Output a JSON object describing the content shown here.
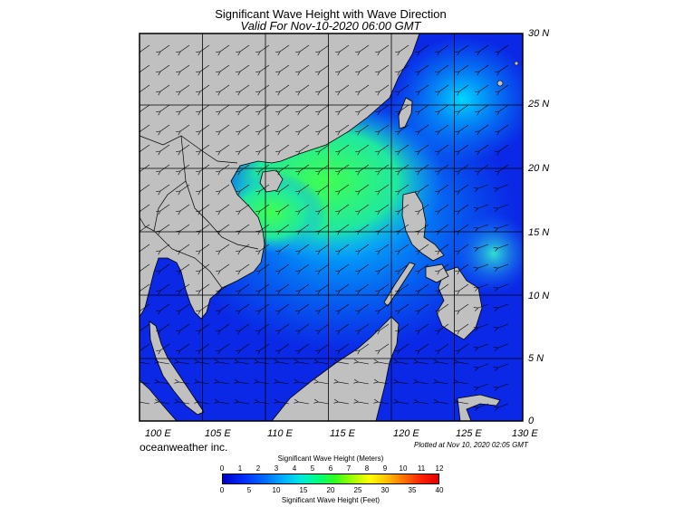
{
  "title": "Significant Wave Height with Wave Direction",
  "subtitle": "Valid For Nov-10-2020 06:00 GMT",
  "lat_labels": [
    "30 N",
    "25 N",
    "20 N",
    "15 N",
    "10 N",
    "5 N",
    "0"
  ],
  "lon_labels": [
    "100 E",
    "105 E",
    "110 E",
    "115 E",
    "120 E",
    "125 E",
    "130 E"
  ],
  "credit": "oceanweather inc.",
  "plotted": "Plotted at Nov 10, 2020 02:05 GMT",
  "colorbar": {
    "meters_title": "Significant Wave Height (Meters)",
    "meters_ticks": [
      "0",
      "1",
      "2",
      "3",
      "4",
      "5",
      "6",
      "7",
      "8",
      "9",
      "10",
      "11",
      "12"
    ],
    "feet_ticks": [
      "0",
      "5",
      "10",
      "15",
      "20",
      "25",
      "30",
      "35",
      "40"
    ],
    "feet_title": "Significant Wave Height (Feet)"
  },
  "colors": {
    "land": "#c0c0c0",
    "sea_low": "#0a28e6",
    "sea_high": "#40ff40"
  }
}
